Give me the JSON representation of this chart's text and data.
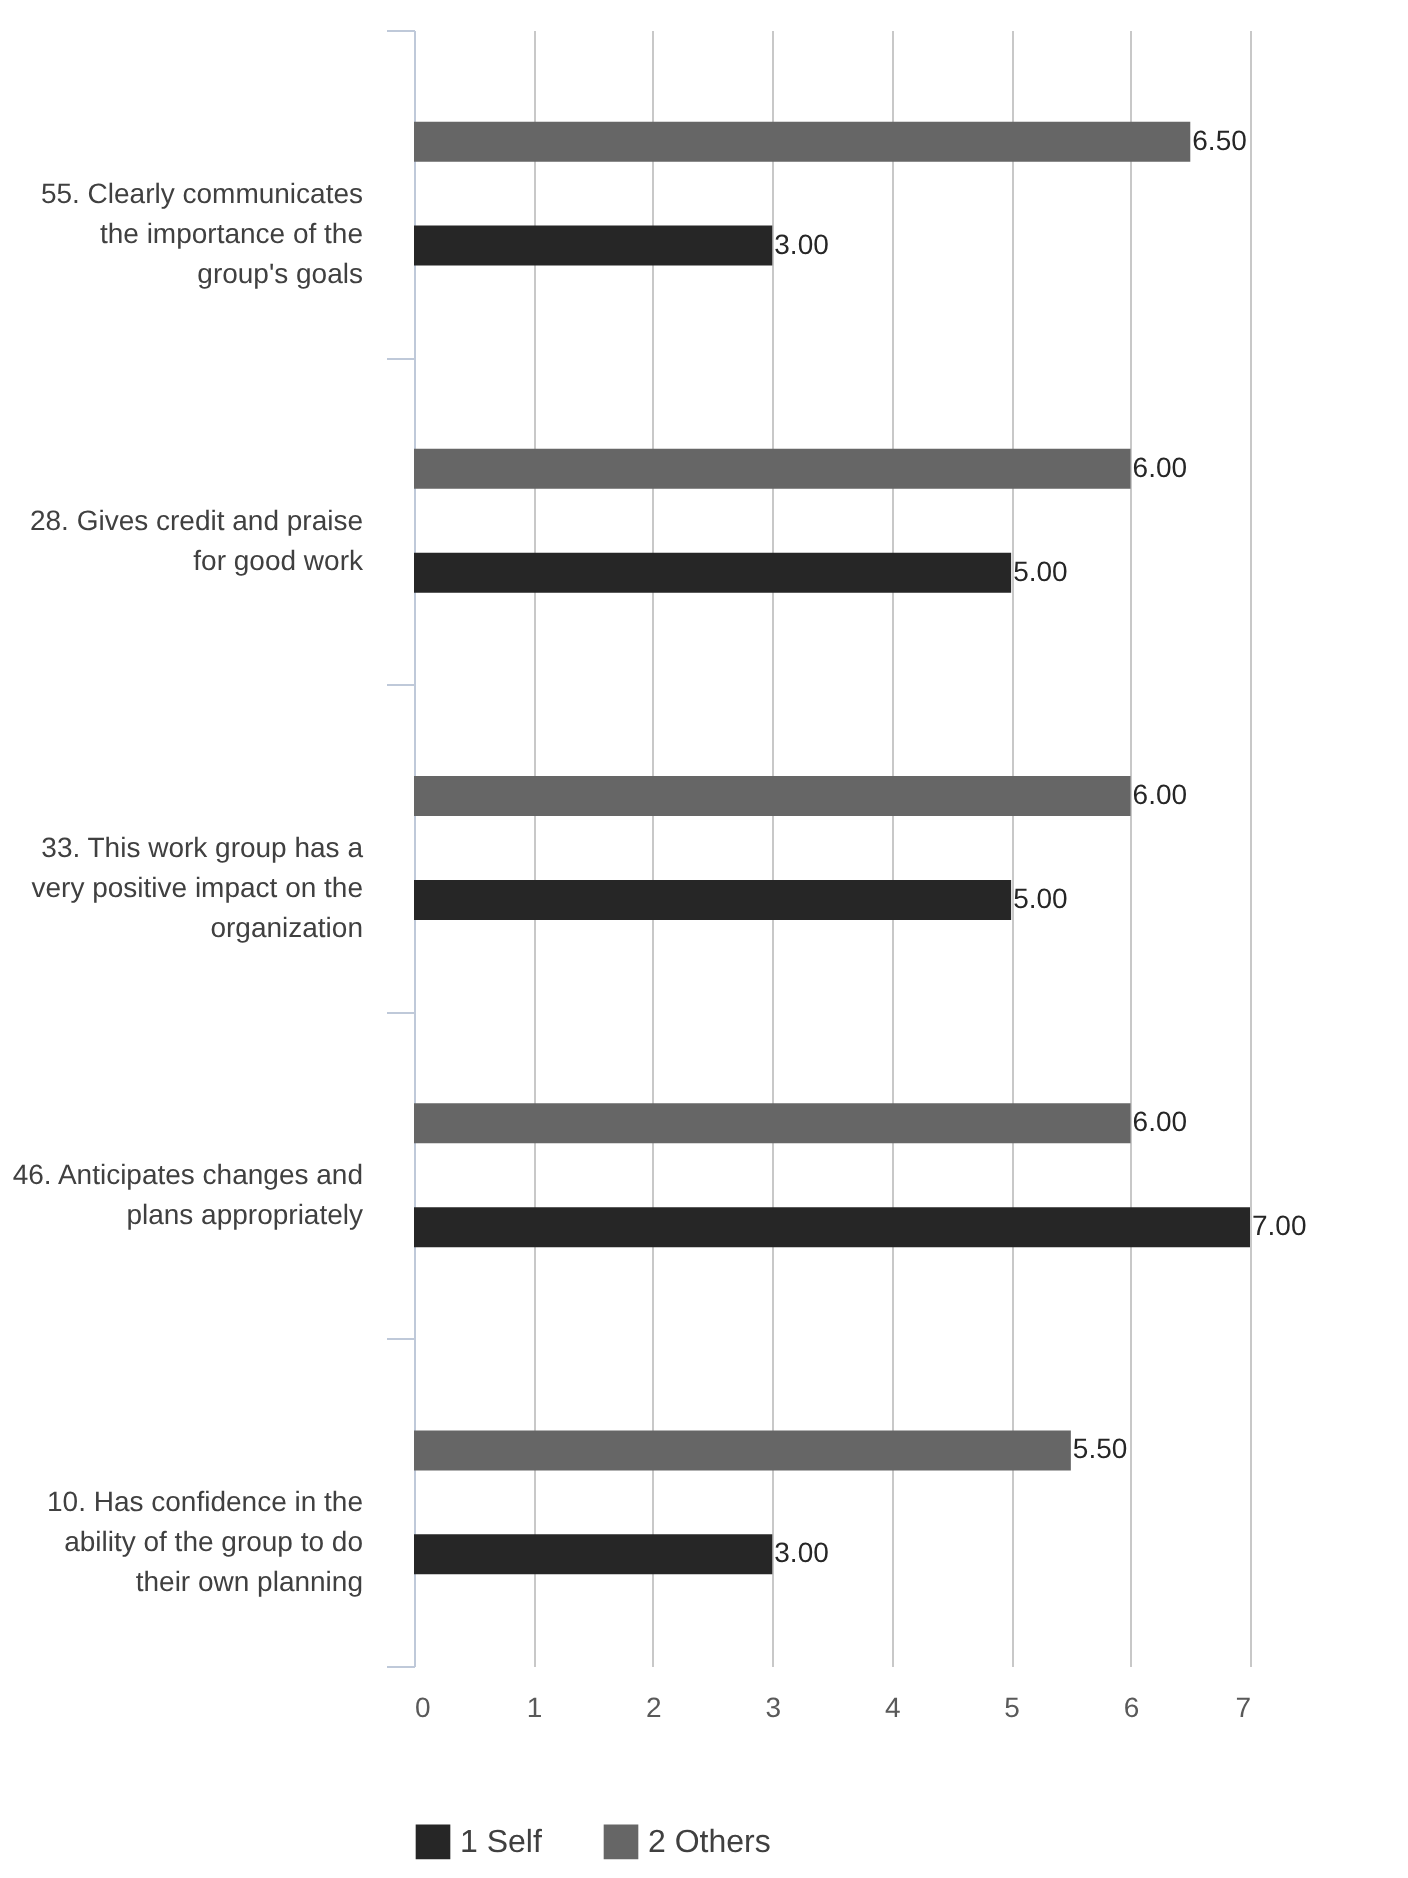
{
  "chart_data": {
    "type": "bar",
    "orientation": "horizontal",
    "categories": [
      "55. Clearly communicates the importance of the group's goals",
      "28. Gives credit and praise for good work",
      "33. This work group has a very positive impact on the organization",
      "46. Anticipates changes and plans appropriately",
      "10. Has confidence in the ability of the group to do their own planning"
    ],
    "series": [
      {
        "name": "1 Self",
        "color": "#262626",
        "values": [
          3,
          5,
          5,
          7,
          3
        ],
        "value_labels": [
          "3.00",
          "5.00",
          "5.00",
          "7.00",
          "3.00"
        ]
      },
      {
        "name": "2 Others",
        "color": "#666666",
        "values": [
          6.5,
          6,
          6,
          6,
          5.5
        ],
        "value_labels": [
          "6.50",
          "6.00",
          "6.00",
          "6.00",
          "5.50"
        ]
      }
    ],
    "xlim": [
      0,
      7
    ],
    "xticks": [
      0,
      1,
      2,
      3,
      4,
      5,
      6,
      7
    ],
    "grid": "x",
    "legend": "bottom"
  }
}
